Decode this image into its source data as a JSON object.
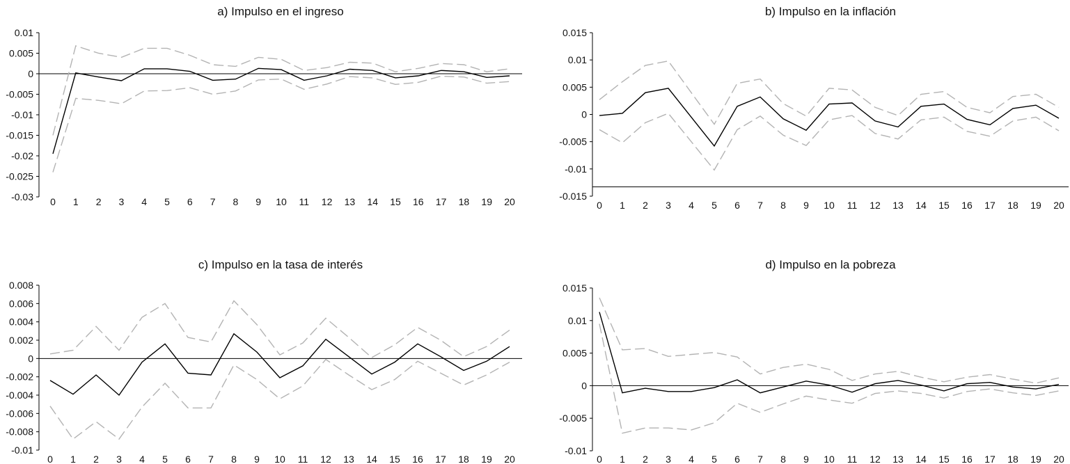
{
  "chart_data": [
    {
      "type": "line",
      "title": "a) Impulso en el ingreso",
      "x": [
        0,
        1,
        2,
        3,
        4,
        5,
        6,
        7,
        8,
        9,
        10,
        11,
        12,
        13,
        14,
        15,
        16,
        17,
        18,
        19,
        20
      ],
      "ylim": [
        -0.03,
        0.01
      ],
      "yticks": [
        0.01,
        0.005,
        0,
        -0.005,
        -0.01,
        -0.015,
        -0.02,
        -0.025,
        -0.03
      ],
      "ytick_labels": [
        "0.01",
        "0.005",
        "0",
        "-0.005",
        "-0.01",
        "-0.015",
        "-0.02",
        "-0.025",
        "-0.03"
      ],
      "zero_line": 0,
      "series": [
        {
          "name": "upper",
          "style": "dashed",
          "values": [
            -0.015,
            0.0068,
            0.005,
            0.004,
            0.0062,
            0.0062,
            0.0045,
            0.0022,
            0.0018,
            0.004,
            0.0035,
            0.0008,
            0.0015,
            0.0028,
            0.0026,
            0.0005,
            0.0013,
            0.0025,
            0.0022,
            0.0005,
            0.0012
          ]
        },
        {
          "name": "response",
          "style": "solid",
          "values": [
            -0.0195,
            0.0002,
            -0.0008,
            -0.0017,
            0.0012,
            0.0012,
            0.0006,
            -0.0016,
            -0.0013,
            0.0013,
            0.001,
            -0.0016,
            -0.0005,
            0.0011,
            0.0008,
            -0.001,
            -0.0005,
            0.0008,
            0.0005,
            -0.0009,
            -0.0005
          ]
        },
        {
          "name": "lower",
          "style": "dashed",
          "values": [
            -0.024,
            -0.006,
            -0.0065,
            -0.0073,
            -0.0042,
            -0.0041,
            -0.0034,
            -0.005,
            -0.0042,
            -0.0015,
            -0.0013,
            -0.0038,
            -0.0025,
            -0.0007,
            -0.001,
            -0.0026,
            -0.0021,
            -0.0006,
            -0.0008,
            -0.0023,
            -0.0019
          ]
        }
      ]
    },
    {
      "type": "line",
      "title": "b) Impulso en la inflación",
      "x": [
        0,
        1,
        2,
        3,
        4,
        5,
        6,
        7,
        8,
        9,
        10,
        11,
        12,
        13,
        14,
        15,
        16,
        17,
        18,
        19,
        20
      ],
      "ylim": [
        -0.015,
        0.015
      ],
      "yticks": [
        0.015,
        0.01,
        0.005,
        0,
        -0.005,
        -0.01,
        -0.015
      ],
      "ytick_labels": [
        "0.015",
        "0.01",
        "0.005",
        "0",
        "-0.005",
        "-0.01",
        "-0.015"
      ],
      "zero_line": -0.0133,
      "series": [
        {
          "name": "upper",
          "style": "dashed",
          "values": [
            0.0027,
            0.006,
            0.009,
            0.0098,
            0.004,
            -0.0018,
            0.0057,
            0.0065,
            0.002,
            -0.0003,
            0.0048,
            0.0045,
            0.0013,
            -0.0002,
            0.0037,
            0.0042,
            0.0013,
            0.0003,
            0.0033,
            0.0037,
            0.0013
          ]
        },
        {
          "name": "response",
          "style": "solid",
          "values": [
            -0.0002,
            0.0002,
            0.004,
            0.0048,
            -0.0005,
            -0.0058,
            0.0015,
            0.0032,
            -0.0008,
            -0.0029,
            0.0019,
            0.0021,
            -0.0012,
            -0.0023,
            0.0015,
            0.0019,
            -0.0009,
            -0.0019,
            0.0011,
            0.0017,
            -0.0007
          ]
        },
        {
          "name": "lower",
          "style": "dashed",
          "values": [
            -0.0028,
            -0.0052,
            -0.0015,
            0.0002,
            -0.005,
            -0.0102,
            -0.0028,
            -0.0003,
            -0.0038,
            -0.0057,
            -0.001,
            -0.0002,
            -0.0035,
            -0.0045,
            -0.001,
            -0.0005,
            -0.0031,
            -0.004,
            -0.0012,
            -0.0005,
            -0.003
          ]
        }
      ]
    },
    {
      "type": "line",
      "title": "c) Impulso en la tasa de interés",
      "x": [
        0,
        1,
        2,
        3,
        4,
        5,
        6,
        7,
        8,
        9,
        10,
        11,
        12,
        13,
        14,
        15,
        16,
        17,
        18,
        19,
        20
      ],
      "ylim": [
        -0.01,
        0.008
      ],
      "yticks": [
        0.008,
        0.006,
        0.004,
        0.002,
        0,
        -0.002,
        -0.004,
        -0.006,
        -0.008,
        -0.01
      ],
      "ytick_labels": [
        "0.008",
        "0.006",
        "0.004",
        "0.002",
        "0",
        "-0.002",
        "-0.004",
        "-0.006",
        "-0.008",
        "-0.01"
      ],
      "zero_line": 0,
      "series": [
        {
          "name": "upper",
          "style": "dashed",
          "values": [
            0.0005,
            0.0009,
            0.0035,
            0.0009,
            0.0045,
            0.006,
            0.0023,
            0.0018,
            0.0063,
            0.0037,
            0.0004,
            0.0017,
            0.0044,
            0.0023,
            0.0001,
            0.0015,
            0.0034,
            0.002,
            0.0002,
            0.0013,
            0.0031
          ]
        },
        {
          "name": "response",
          "style": "solid",
          "values": [
            -0.0024,
            -0.0039,
            -0.0018,
            -0.004,
            -0.0004,
            0.0016,
            -0.0016,
            -0.0018,
            0.0027,
            0.0007,
            -0.0021,
            -0.0008,
            0.0021,
            0.0002,
            -0.0017,
            -0.0004,
            0.0016,
            0.0002,
            -0.0013,
            -0.0003,
            0.0013
          ]
        },
        {
          "name": "lower",
          "style": "dashed",
          "values": [
            -0.0052,
            -0.0088,
            -0.0069,
            -0.0088,
            -0.0053,
            -0.0027,
            -0.0054,
            -0.0054,
            -0.0007,
            -0.0023,
            -0.0044,
            -0.003,
            -0.0001,
            -0.0018,
            -0.0034,
            -0.0023,
            -0.0003,
            -0.0016,
            -0.0029,
            -0.0018,
            -0.0004
          ]
        }
      ]
    },
    {
      "type": "line",
      "title": "d) Impulso en la pobreza",
      "x": [
        0,
        1,
        2,
        3,
        4,
        5,
        6,
        7,
        8,
        9,
        10,
        11,
        12,
        13,
        14,
        15,
        16,
        17,
        18,
        19,
        20
      ],
      "ylim": [
        -0.01,
        0.015
      ],
      "yticks": [
        0.015,
        0.01,
        0.005,
        0,
        -0.005,
        -0.01
      ],
      "ytick_labels": [
        "0.015",
        "0.01",
        "0.005",
        "0",
        "-0.005",
        "-0.01"
      ],
      "zero_line": 0,
      "series": [
        {
          "name": "upper",
          "style": "dashed",
          "values": [
            0.0135,
            0.0055,
            0.0057,
            0.0045,
            0.0048,
            0.0051,
            0.0044,
            0.0018,
            0.0028,
            0.0033,
            0.0025,
            0.0008,
            0.0018,
            0.0022,
            0.0013,
            0.0006,
            0.0013,
            0.0017,
            0.001,
            0.0004,
            0.0012
          ]
        },
        {
          "name": "response",
          "style": "solid",
          "values": [
            0.0113,
            -0.0011,
            -0.0004,
            -0.0009,
            -0.0009,
            -0.0003,
            0.0009,
            -0.0011,
            -0.0002,
            0.0007,
            0.0001,
            -0.001,
            0.0003,
            0.0008,
            0.0001,
            -0.0008,
            0.0003,
            0.0005,
            -0.0002,
            -0.0005,
            0.0002
          ]
        },
        {
          "name": "lower",
          "style": "dashed",
          "values": [
            0.0095,
            -0.0073,
            -0.0065,
            -0.0065,
            -0.0068,
            -0.0057,
            -0.0027,
            -0.0041,
            -0.0028,
            -0.0016,
            -0.0022,
            -0.0027,
            -0.0012,
            -0.0008,
            -0.0012,
            -0.0019,
            -0.0009,
            -0.0005,
            -0.0011,
            -0.0015,
            -0.0008
          ]
        }
      ]
    }
  ]
}
